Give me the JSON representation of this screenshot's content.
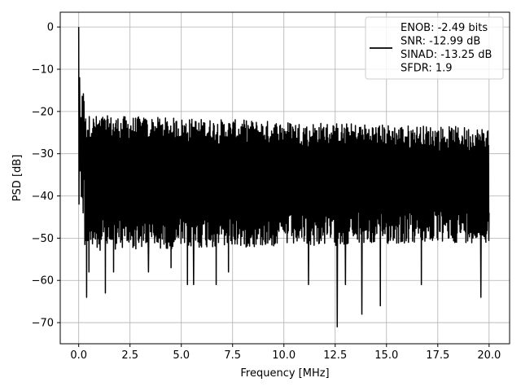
{
  "chart_data": {
    "type": "line",
    "title": "",
    "xlabel": "Frequency [MHz]",
    "ylabel": "PSD [dB]",
    "xlim": [
      -0.9,
      21.0
    ],
    "ylim": [
      -75,
      3.5
    ],
    "xticks": [
      0.0,
      2.5,
      5.0,
      7.5,
      10.0,
      12.5,
      15.0,
      17.5,
      20.0
    ],
    "xtick_labels": [
      "0.0",
      "2.5",
      "5.0",
      "7.5",
      "10.0",
      "12.5",
      "15.0",
      "17.5",
      "20.0"
    ],
    "yticks": [
      0,
      -10,
      -20,
      -30,
      -40,
      -50,
      -60,
      -70
    ],
    "ytick_labels": [
      "0",
      "−10",
      "−20",
      "−30",
      "−40",
      "−50",
      "−60",
      "−70"
    ],
    "grid": true,
    "legend_placement": "top-right",
    "legend_lines": [
      "ENOB: -2.49 bits",
      "SNR: -12.99 dB",
      "SINAD: -13.25 dB",
      "SFDR: 1.9"
    ],
    "series": [
      {
        "color": "#000000",
        "x_range": [
          0.0,
          20.0
        ],
        "points": [
          {
            "x": 0.0,
            "y": 0.0
          },
          {
            "x": 0.04,
            "y": -12
          },
          {
            "x": 0.09,
            "y": -22
          },
          {
            "x": 0.14,
            "y": -40
          },
          {
            "x": 0.22,
            "y": -44
          },
          {
            "x": 0.38,
            "y": -64
          },
          {
            "x": 0.5,
            "y": -58
          },
          {
            "x": 1.3,
            "y": -63
          },
          {
            "x": 1.7,
            "y": -58
          },
          {
            "x": 3.4,
            "y": -58
          },
          {
            "x": 4.5,
            "y": -57
          },
          {
            "x": 5.3,
            "y": -61
          },
          {
            "x": 5.6,
            "y": -61
          },
          {
            "x": 6.7,
            "y": -61
          },
          {
            "x": 7.3,
            "y": -58
          },
          {
            "x": 11.2,
            "y": -61
          },
          {
            "x": 12.6,
            "y": -71
          },
          {
            "x": 13.0,
            "y": -61
          },
          {
            "x": 13.8,
            "y": -68
          },
          {
            "x": 14.7,
            "y": -66
          },
          {
            "x": 16.7,
            "y": -61
          },
          {
            "x": 19.6,
            "y": -64
          },
          {
            "x": 20.0,
            "y": -44
          }
        ]
      }
    ]
  }
}
